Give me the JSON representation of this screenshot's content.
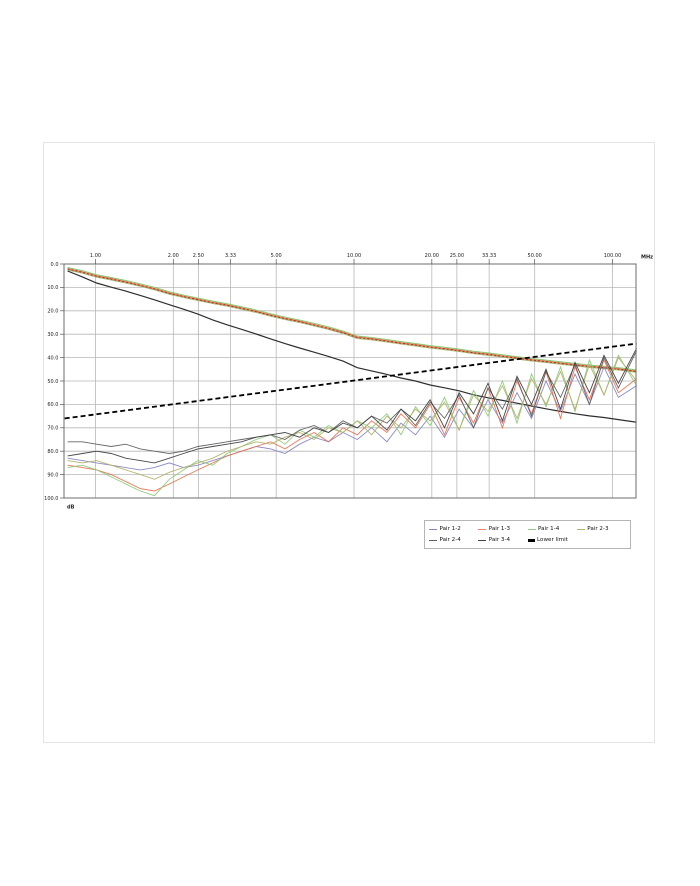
{
  "page": {
    "background": "#ffffff",
    "frame_border_color": "#e4e4e4"
  },
  "chart_data": {
    "type": "line",
    "title": "",
    "x_axis": {
      "label": "MHz",
      "scale": "log",
      "tick_labels": [
        "1.00",
        "2.00",
        "2.50",
        "3.33",
        "5.00",
        "10.00",
        "20.00",
        "25.00",
        "33.33",
        "50.00",
        "100.00"
      ],
      "tick_values": [
        1,
        2,
        2.5,
        3.33,
        5,
        10,
        20,
        25,
        33.33,
        50,
        100
      ],
      "range": [
        0.76,
        124
      ]
    },
    "y_axis": {
      "label": "dB",
      "inverted": true,
      "tick_labels": [
        "0.0",
        "10.0",
        "20.0",
        "30.0",
        "40.0",
        "50.0",
        "60.0",
        "70.0",
        "80.0",
        "90.0",
        "100.0"
      ],
      "tick_values": [
        0,
        10,
        20,
        30,
        40,
        50,
        60,
        70,
        80,
        90,
        100
      ],
      "range": [
        0,
        100
      ]
    },
    "grid": true,
    "legend_position": "bottom-right",
    "frequencies": [
      0.78,
      0.89,
      1.01,
      1.15,
      1.31,
      1.49,
      1.69,
      1.93,
      2.19,
      2.49,
      2.84,
      3.23,
      3.67,
      4.18,
      4.76,
      5.41,
      6.16,
      7.01,
      7.97,
      9.07,
      10.3,
      11.7,
      13.4,
      15.2,
      17.3,
      19.7,
      22.4,
      25.5,
      29.0,
      33.0,
      37.5,
      42.7,
      48.6,
      55.3,
      62.9,
      71.6,
      81.4,
      92.7,
      105.4,
      124.0
    ],
    "measured_series": [
      {
        "name": "Pair 1-2",
        "color": "#8585c2",
        "values": [
          83,
          84,
          85,
          86,
          87,
          88,
          87,
          85,
          87,
          86,
          84,
          82,
          80,
          78,
          79,
          81,
          77,
          74,
          76,
          72,
          75,
          70,
          76,
          68,
          73,
          65,
          74,
          62,
          70,
          58,
          68,
          55,
          66,
          50,
          63,
          47,
          60,
          44,
          57,
          52
        ]
      },
      {
        "name": "Pair 1-3",
        "color": "#e8714f",
        "values": [
          86,
          87,
          88,
          90,
          93,
          96,
          97,
          94,
          91,
          88,
          85,
          82,
          80,
          78,
          76,
          79,
          75,
          72,
          76,
          70,
          73,
          67,
          72,
          64,
          70,
          60,
          73,
          57,
          68,
          53,
          70,
          50,
          64,
          46,
          66,
          44,
          58,
          41,
          55,
          49
        ]
      },
      {
        "name": "Pair 1-4",
        "color": "#8cc877",
        "values": [
          87,
          86,
          88,
          91,
          94,
          97,
          99,
          92,
          88,
          84,
          86,
          81,
          78,
          75,
          73,
          77,
          71,
          74,
          69,
          72,
          67,
          70,
          64,
          73,
          61,
          69,
          57,
          71,
          54,
          65,
          50,
          68,
          47,
          61,
          44,
          63,
          41,
          56,
          39,
          52
        ]
      },
      {
        "name": "Pair 2-3",
        "color": "#b3b168",
        "values": [
          84,
          85,
          84,
          86,
          88,
          90,
          92,
          89,
          87,
          85,
          83,
          80,
          78,
          76,
          77,
          74,
          72,
          75,
          70,
          72,
          67,
          73,
          65,
          70,
          62,
          67,
          59,
          71,
          56,
          63,
          52,
          66,
          49,
          60,
          46,
          62,
          43,
          56,
          40,
          50
        ]
      },
      {
        "name": "Pair 2-4",
        "color": "#5e5e5e",
        "values": [
          76,
          76,
          77,
          78,
          77,
          79,
          80,
          81,
          80,
          78,
          77,
          76,
          75,
          74,
          73,
          75,
          71,
          69,
          72,
          67,
          70,
          65,
          68,
          62,
          69,
          59,
          66,
          56,
          70,
          53,
          62,
          49,
          65,
          46,
          57,
          43,
          60,
          40,
          53,
          37
        ]
      },
      {
        "name": "Pair 3-4",
        "color": "#3d3d3d",
        "values": [
          82,
          81,
          80,
          81,
          83,
          84,
          85,
          83,
          81,
          79,
          78,
          77,
          76,
          74,
          73,
          72,
          74,
          70,
          72,
          68,
          70,
          65,
          71,
          62,
          67,
          58,
          70,
          55,
          64,
          51,
          67,
          48,
          60,
          45,
          62,
          42,
          55,
          39,
          51,
          36
        ]
      }
    ],
    "reference_bundle": {
      "values": [
        2.0,
        3.4,
        5.1,
        6.3,
        7.6,
        9.0,
        10.5,
        12.4,
        13.8,
        15.1,
        16.4,
        17.5,
        18.8,
        20.2,
        21.8,
        23.2,
        24.5,
        25.9,
        27.4,
        29.2,
        31.3,
        31.9,
        32.8,
        33.7,
        34.5,
        35.4,
        36.1,
        36.9,
        37.8,
        38.5,
        39.3,
        40.1,
        40.9,
        41.6,
        42.3,
        43.0,
        43.7,
        44.2,
        44.8,
        45.8
      ],
      "curves": [
        {
          "color": "#8cc877",
          "offset": -0.5,
          "dash": ""
        },
        {
          "color": "#b3b168",
          "offset": 0.5,
          "dash": ""
        },
        {
          "color": "#e8714f",
          "offset": 0.0,
          "dash": ""
        },
        {
          "color": "#a23a28",
          "offset": 0.15,
          "dash": "2,2"
        }
      ]
    },
    "reference_black_curve": {
      "color": "#2e2e2e",
      "values": [
        3.0,
        5.5,
        8.1,
        9.9,
        11.6,
        13.4,
        15.3,
        17.4,
        19.3,
        21.4,
        23.9,
        26.0,
        27.9,
        29.9,
        32.0,
        34.0,
        35.9,
        37.7,
        39.5,
        41.5,
        44.3,
        45.7,
        47.2,
        48.7,
        50.0,
        51.7,
        52.9,
        54.2,
        55.9,
        57.2,
        58.3,
        59.5,
        60.7,
        61.9,
        63.0,
        64.0,
        64.9,
        65.6,
        66.5,
        67.6
      ]
    },
    "limit_line": {
      "name": "Lower limit",
      "color": "#000000",
      "dash": "5,3",
      "points": [
        [
          0.76,
          66.0
        ],
        [
          124.0,
          34.0
        ]
      ]
    }
  },
  "legend": {
    "items": [
      {
        "label": "Pair 1-2",
        "color": "#8585c2",
        "thick": false
      },
      {
        "label": "Pair 1-3",
        "color": "#ef8465",
        "thick": false
      },
      {
        "label": "Pair 1-4",
        "color": "#93c883",
        "thick": false
      },
      {
        "label": "Pair 2-3",
        "color": "#b5b36b",
        "thick": false
      },
      {
        "label": "Pair 2-4",
        "color": "#606060",
        "thick": false
      },
      {
        "label": "Pair 3-4",
        "color": "#404040",
        "thick": false
      },
      {
        "label": "Lower limit",
        "color": "#000000",
        "thick": true
      }
    ]
  }
}
